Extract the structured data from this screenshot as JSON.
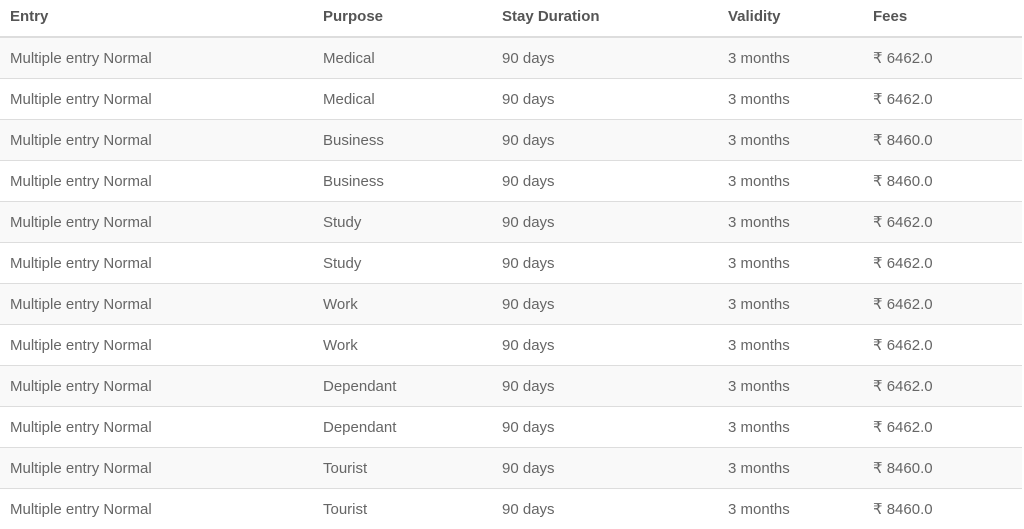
{
  "table": {
    "headers": [
      "Entry",
      "Purpose",
      "Stay Duration",
      "Validity",
      "Fees"
    ],
    "rows": [
      [
        "Multiple entry Normal",
        "Medical",
        "90 days",
        "3 months",
        "₹ 6462.0"
      ],
      [
        "Multiple entry Normal",
        "Medical",
        "90 days",
        "3 months",
        "₹ 6462.0"
      ],
      [
        "Multiple entry Normal",
        "Business",
        "90 days",
        "3 months",
        "₹ 8460.0"
      ],
      [
        "Multiple entry Normal",
        "Business",
        "90 days",
        "3 months",
        "₹ 8460.0"
      ],
      [
        "Multiple entry Normal",
        "Study",
        "90 days",
        "3 months",
        "₹ 6462.0"
      ],
      [
        "Multiple entry Normal",
        "Study",
        "90 days",
        "3 months",
        "₹ 6462.0"
      ],
      [
        "Multiple entry Normal",
        "Work",
        "90 days",
        "3 months",
        "₹ 6462.0"
      ],
      [
        "Multiple entry Normal",
        "Work",
        "90 days",
        "3 months",
        "₹ 6462.0"
      ],
      [
        "Multiple entry Normal",
        "Dependant",
        "90 days",
        "3 months",
        "₹ 6462.0"
      ],
      [
        "Multiple entry Normal",
        "Dependant",
        "90 days",
        "3 months",
        "₹ 6462.0"
      ],
      [
        "Multiple entry Normal",
        "Tourist",
        "90 days",
        "3 months",
        "₹ 8460.0"
      ],
      [
        "Multiple entry Normal",
        "Tourist",
        "90 days",
        "3 months",
        "₹ 8460.0"
      ]
    ]
  }
}
